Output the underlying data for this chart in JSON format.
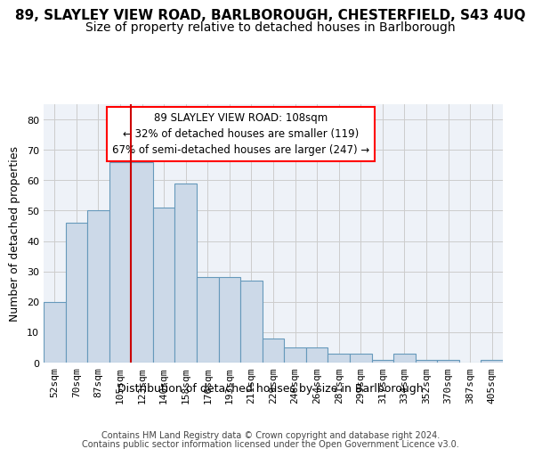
{
  "title_line1": "89, SLAYLEY VIEW ROAD, BARLBOROUGH, CHESTERFIELD, S43 4UQ",
  "title_line2": "Size of property relative to detached houses in Barlborough",
  "xlabel": "Distribution of detached houses by size in Barlborough",
  "ylabel": "Number of detached properties",
  "bar_labels": [
    "52sqm",
    "70sqm",
    "87sqm",
    "105sqm",
    "123sqm",
    "140sqm",
    "158sqm",
    "176sqm",
    "193sqm",
    "211sqm",
    "229sqm",
    "246sqm",
    "264sqm",
    "281sqm",
    "299sqm",
    "317sqm",
    "334sqm",
    "352sqm",
    "370sqm",
    "387sqm",
    "405sqm"
  ],
  "bar_heights": [
    20,
    46,
    50,
    66,
    66,
    51,
    59,
    28,
    28,
    27,
    8,
    5,
    5,
    3,
    3,
    1,
    3,
    1,
    1,
    0,
    1
  ],
  "bar_color": "#ccd9e8",
  "bar_edge_color": "#6699bb",
  "red_line_index": 3.5,
  "annotation_text": "89 SLAYLEY VIEW ROAD: 108sqm\n← 32% of detached houses are smaller (119)\n67% of semi-detached houses are larger (247) →",
  "annotation_box_color": "white",
  "annotation_box_edge_color": "red",
  "red_line_color": "#cc0000",
  "ylim": [
    0,
    85
  ],
  "yticks": [
    0,
    10,
    20,
    30,
    40,
    50,
    60,
    70,
    80
  ],
  "grid_color": "#cccccc",
  "background_color": "#eef2f8",
  "footer_line1": "Contains HM Land Registry data © Crown copyright and database right 2024.",
  "footer_line2": "Contains public sector information licensed under the Open Government Licence v3.0.",
  "title_fontsize": 11,
  "subtitle_fontsize": 10,
  "axis_label_fontsize": 9,
  "tick_fontsize": 8,
  "annotation_fontsize": 8.5,
  "footer_fontsize": 7
}
